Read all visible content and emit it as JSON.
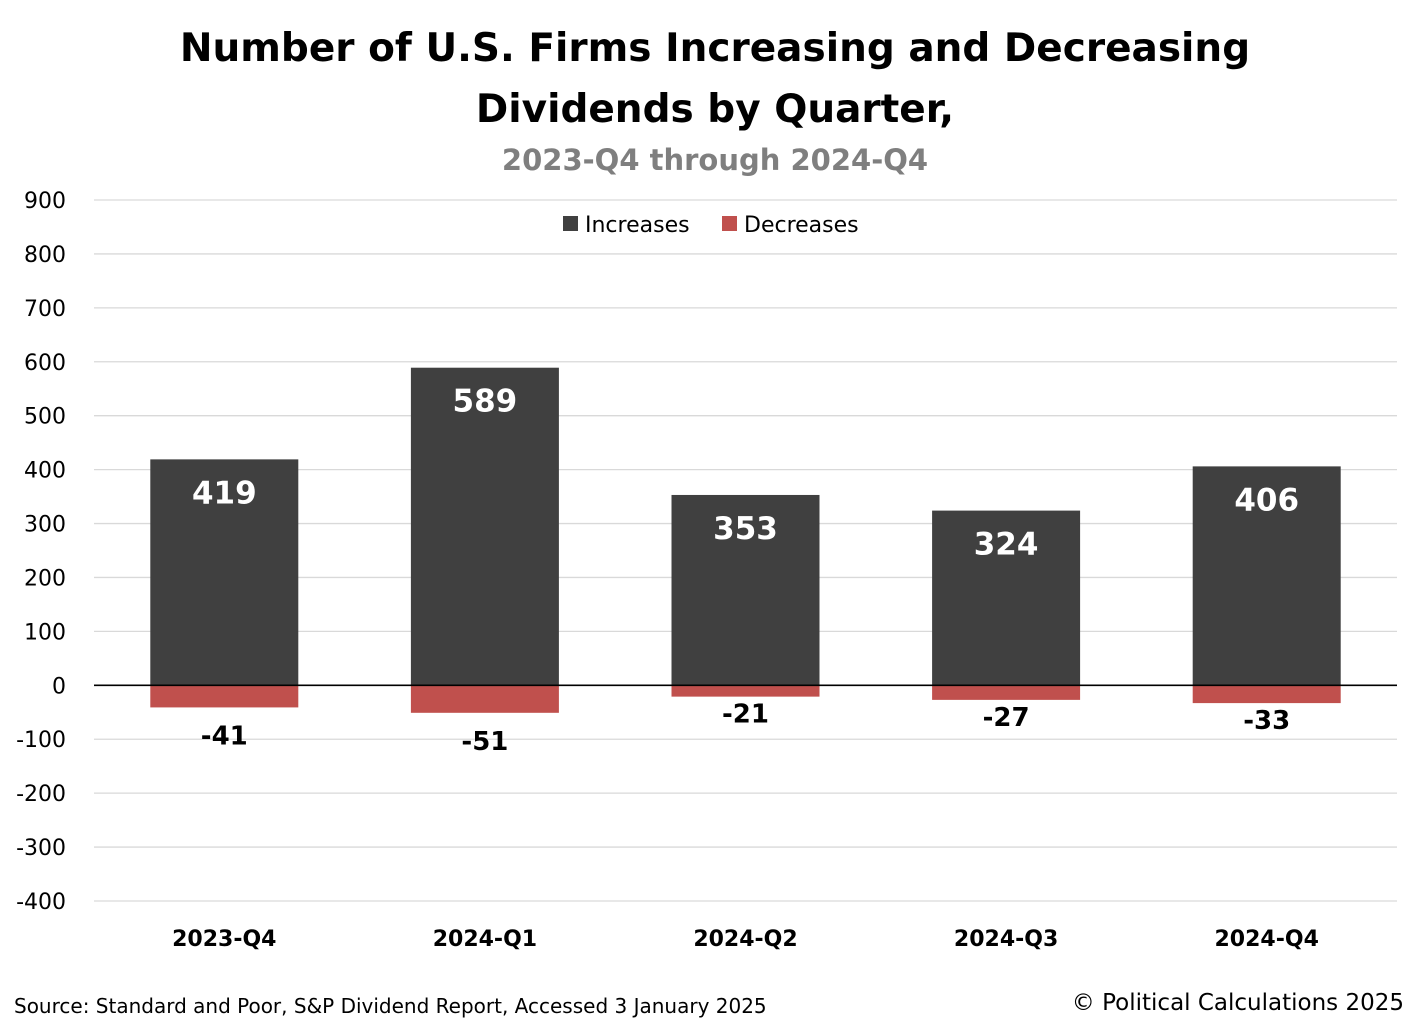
{
  "chart_data": {
    "type": "bar",
    "title_line1": "Number of U.S. Firms Increasing and Decreasing",
    "title_line2": "Dividends by Quarter,",
    "subtitle": "2023-Q4 through 2024-Q4",
    "categories": [
      "2023-Q4",
      "2024-Q1",
      "2024-Q2",
      "2024-Q3",
      "2024-Q4"
    ],
    "series": [
      {
        "name": "Increases",
        "values": [
          419,
          589,
          353,
          324,
          406
        ],
        "color": "#404040"
      },
      {
        "name": "Decreases",
        "values": [
          -41,
          -51,
          -21,
          -27,
          -33
        ],
        "color": "#c0504d"
      }
    ],
    "ylim": [
      -400,
      900
    ],
    "yticks": [
      900,
      800,
      700,
      600,
      500,
      400,
      300,
      200,
      100,
      0,
      -100,
      -200,
      -300,
      -400
    ],
    "legend_position": "top-center",
    "grid": true,
    "stacked": true
  },
  "footer": {
    "source": "Source: Standard and Poor, S&P Dividend Report, Accessed 3 January 2025",
    "copyright": "© Political Calculations 2025"
  },
  "colors": {
    "gridline": "#d9d9d9",
    "zero_line": "#000000",
    "increase_label": "#ffffff",
    "decrease_label": "#000000"
  }
}
